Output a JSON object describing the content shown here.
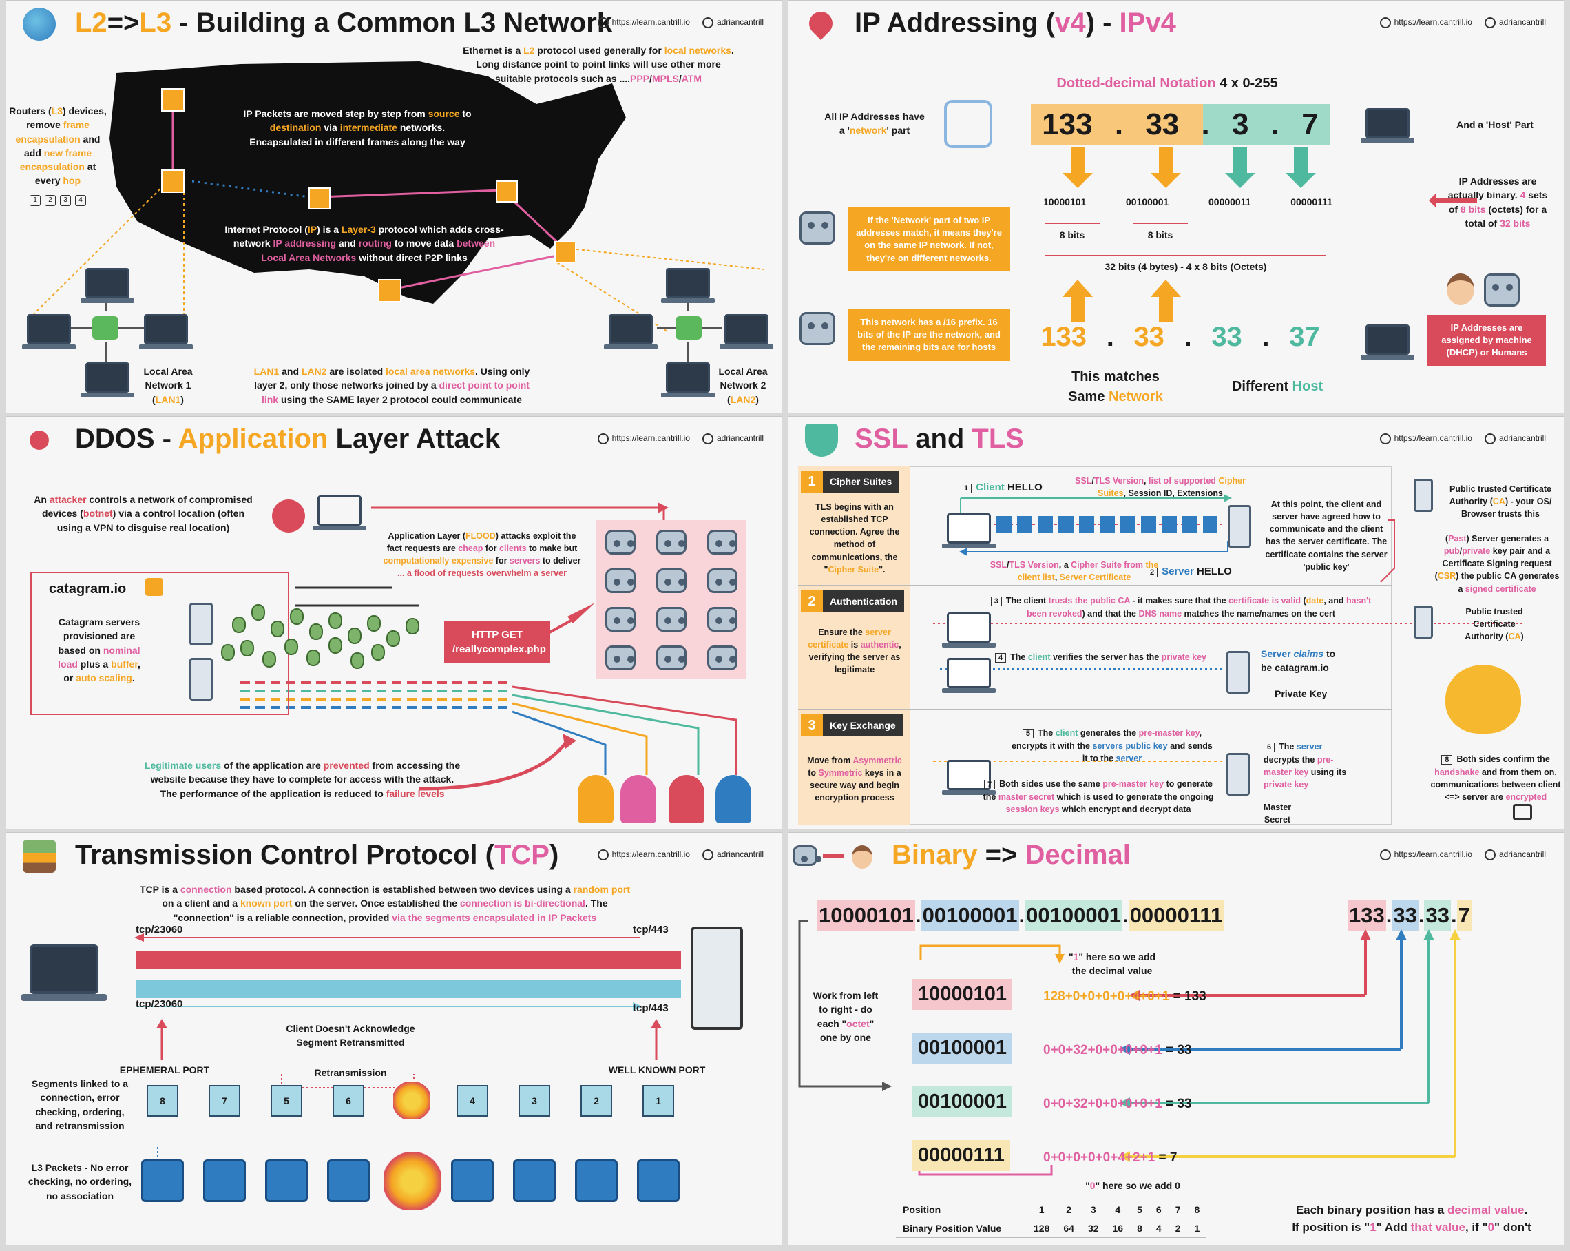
{
  "header": {
    "url": "https://learn.cantrill.io",
    "handle": "adriancantrill"
  },
  "p1": {
    "title_a": "L2",
    "title_b": "=>",
    "title_c": "L3",
    "title_d": " - Building a Common L3 Network",
    "eth_1": "Ethernet is a ",
    "eth_2": "L2",
    "eth_3": " protocol used generally for ",
    "eth_4": "local networks",
    "eth_5": ".",
    "eth_6": "Long distance point to point links will use other more",
    "eth_7": "suitable protocols such as ....",
    "eth_8": "PPP",
    "eth_9": "/",
    "eth_10": "MPLS",
    "eth_11": "/",
    "eth_12": "ATM",
    "routers_1": "Routers (",
    "routers_2": "L3",
    "routers_3": ") devices,",
    "routers_4": "remove ",
    "routers_5": "frame",
    "routers_6": "encapsulation",
    "routers_7": " and",
    "routers_8": "add ",
    "routers_9": "new frame",
    "routers_10": "encapsulation",
    "routers_11": " at",
    "routers_12": "every ",
    "routers_13": "hop",
    "hops": [
      "1",
      "2",
      "3",
      "4"
    ],
    "ip_1": "IP Packets are moved step by step from ",
    "ip_2": "source",
    "ip_3": " to",
    "ip_4": "destination",
    "ip_5": " via ",
    "ip_6": "intermediate",
    "ip_7": " networks.",
    "ip_8": "Encapsulated in different frames along the way",
    "proto_1": "Internet Protocol (",
    "proto_2": "IP",
    "proto_3": ") is a ",
    "proto_4": "Layer-3",
    "proto_5": " protocol which adds cross-",
    "proto_6": "network ",
    "proto_7": "IP addressing",
    "proto_8": " and ",
    "proto_9": "routing",
    "proto_10": " to move data ",
    "proto_11": "between",
    "proto_12": "Local Area Networks",
    "proto_13": " without direct P2P links",
    "lan1_1": "Local Area",
    "lan1_2": "Network 1",
    "lan1_3": "(",
    "lan1_4": "LAN1",
    "lan1_5": ")",
    "lan2_1": "Local Area",
    "lan2_2": "Network 2",
    "lan2_3": "(",
    "lan2_4": "LAN2",
    "lan2_5": ")",
    "iso_1": "LAN1",
    "iso_2": " and ",
    "iso_3": "LAN2",
    "iso_4": " are isolated ",
    "iso_5": "local area networks",
    "iso_6": ". Using only",
    "iso_7": "layer 2, only those networks joined by a ",
    "iso_8": "direct point to point",
    "iso_9": "link",
    "iso_10": " using the SAME layer 2 protocol could communicate"
  },
  "p2": {
    "title_a": "IP Addressing (",
    "title_b": "v4",
    "title_c": ") - ",
    "title_d": "IPv4",
    "dotted_1": "Dotted-decimal Notation ",
    "dotted_2": "4 x 0-255",
    "net_part_1": "All IP Addresses have",
    "net_part_2": "a '",
    "net_part_3": "network",
    "net_part_4": "' part",
    "host_part": "And a 'Host' Part",
    "octets": [
      "133",
      ".",
      "33",
      ".",
      "3",
      ".",
      "7"
    ],
    "binary": [
      "10000101",
      "00100001",
      "00000011",
      "00000111"
    ],
    "bits8": "8 bits",
    "bits32": "32 bits (4 bytes) - 4 x 8 bits (Octets)",
    "binary_note_1": "IP Addresses are",
    "binary_note_2": "actually binary. ",
    "binary_note_3": "4",
    "binary_note_4": " sets",
    "binary_note_5": "of ",
    "binary_note_6": "8 bits",
    "binary_note_7": " (octets) for a",
    "binary_note_8": "total of ",
    "binary_note_9": "32 bits",
    "robot_note_1": "If the 'Network' part of two IP addresses match, it means they're on the same IP network. If not, they're on different networks.",
    "robot_note_2": "This network has a /16 prefix. 16 bits of the IP are the network, and the remaining bits are for hosts",
    "octets2": [
      "133",
      ".",
      "33",
      ".",
      "33",
      ".",
      "37"
    ],
    "match_1": "This matches",
    "match_2": "Same ",
    "match_3": "Network",
    "diff_1": "Different ",
    "diff_2": "Host",
    "assigned": "IP Addresses are assigned by machine (DHCP) or Humans"
  },
  "p3": {
    "title_a": "DDOS - ",
    "title_b": "Application",
    "title_c": " Layer Attack",
    "attacker_1": "An ",
    "attacker_2": "attacker",
    "attacker_3": " controls a network of compromised",
    "attacker_4": "devices (",
    "attacker_5": "botnet",
    "attacker_6": ") via a control location (often",
    "attacker_7": "using a VPN to disguise real location)",
    "flood_1": "Application Layer (",
    "flood_2": "FLOOD",
    "flood_3": ") attacks exploit the",
    "flood_4": "fact requests are ",
    "flood_5": "cheap",
    "flood_6": " for ",
    "flood_7": "clients",
    "flood_8": " to make but",
    "flood_9": "computationally expensive",
    "flood_10": " for ",
    "flood_11": "servers",
    "flood_12": " to deliver",
    "flood_13": "... a flood of requests overwhelm a server",
    "site": "catagram.io",
    "servers_1": "Catagram servers",
    "servers_2": "provisioned are",
    "servers_3": "based on ",
    "servers_4": "nominal",
    "servers_5": "load",
    "servers_6": " plus a ",
    "servers_7": "buffer",
    "servers_8": ",",
    "servers_9": "or ",
    "servers_10": "auto scaling",
    "servers_11": ".",
    "http_1": "HTTP GET",
    "http_2": "/reallycomplex.php",
    "legit_1": "Legitimate users",
    "legit_2": " of the application are ",
    "legit_3": "prevented",
    "legit_4": " from accessing the",
    "legit_5": "website because they have to complete for access with the attack.",
    "legit_6": "The performance of the application is reduced to ",
    "legit_7": "failure levels"
  },
  "p4": {
    "title_a": "SSL",
    "title_b": " and ",
    "title_c": "TLS",
    "s1_num": "1",
    "s1_label": "Cipher Suites",
    "s1_desc_1": "TLS begins with an established TCP connection. Agree the method of communications, the \"",
    "s1_desc_2": "Cipher Suite",
    "s1_desc_3": "\".",
    "s2_num": "2",
    "s2_label": "Authentication",
    "s2_desc_1": "Ensure the ",
    "s2_desc_2": "server certificate",
    "s2_desc_3": " is ",
    "s2_desc_4": "authentic",
    "s2_desc_5": ", verifying the server as legitimate",
    "s3_num": "3",
    "s3_label": "Key Exchange",
    "s3_desc_1": "Move from ",
    "s3_desc_2": "Asymmetric",
    "s3_desc_3": " to ",
    "s3_desc_4": "Symmetric",
    "s3_desc_5": " keys in a secure way and begin encryption process",
    "n1": "1",
    "client_hello_1": "Client",
    "client_hello_2": " HELLO",
    "hello_detail_1": "SSL",
    "hello_detail_2": "/",
    "hello_detail_3": "TLS Version",
    "hello_detail_4": ", ",
    "hello_detail_5": "list of supported",
    "hello_detail_6": "Cipher Suites",
    "hello_detail_7": ", Session ID, Extensions",
    "server_detail_1": "SSL",
    "server_detail_2": "/",
    "server_detail_3": "TLS Version",
    "server_detail_4": ", a ",
    "server_detail_5": "Cipher Suite from",
    "server_detail_6": "the client list",
    "server_detail_7": ", ",
    "server_detail_8": "Server Certificate",
    "n2": "2",
    "server_hello_1": "Server",
    "server_hello_2": " HELLO",
    "agreed": "At this point, the client and server have agreed how to communicate and the client has the server certificate. The certificate contains the server 'public key'",
    "ca_1": "Public trusted Certificate Authority (",
    "ca_2": "CA",
    "ca_3": ") - your OS/ Browser trusts this",
    "csr_1": "(",
    "csr_2": "Past",
    "csr_3": ") Server generates a ",
    "csr_4": "pub",
    "csr_5": "/",
    "csr_6": "private",
    "csr_7": " key pair and a Certificate Signing request (",
    "csr_8": "CSR",
    "csr_9": ") the public CA generates a ",
    "csr_10": "signed certificate",
    "n3": "3",
    "trust_1": "The client ",
    "trust_2": "trusts the public CA",
    "trust_3": " - it makes sure that the ",
    "trust_4": "certificate is valid",
    "trust_5": " (",
    "trust_6": "date",
    "trust_7": ", and ",
    "trust_8": "hasn't been revoked",
    "trust_9": ") and that the ",
    "trust_10": "DNS name",
    "trust_11": " matches the name/names on the cert",
    "ca2_1": "Public trusted",
    "ca2_2": "Certificate",
    "ca2_3": "Authority (",
    "ca2_4": "CA",
    "ca2_5": ")",
    "n4": "4",
    "verify_1": "The ",
    "verify_2": "client",
    "verify_3": " verifies the server has the ",
    "verify_4": "private key",
    "claims_1": "Server ",
    "claims_2": "claims",
    "claims_3": " to",
    "claims_4": "be catagram.io",
    "private_key": "Private Key",
    "n5": "5",
    "premaster_1": "The ",
    "premaster_2": "client",
    "premaster_3": " generates the ",
    "premaster_4": "pre-master key",
    "premaster_5": ", encrypts it with the ",
    "premaster_6": "servers public key",
    "premaster_7": " and sends it to the ",
    "premaster_8": "server",
    "n6": "6",
    "decrypt_1": "The ",
    "decrypt_2": "server",
    "decrypt_3": " decrypts the ",
    "decrypt_4": "pre-master key",
    "decrypt_5": " using its ",
    "decrypt_6": "private key",
    "n7": "7",
    "both_1": "Both sides use the same ",
    "both_2": "pre-master key",
    "both_3": " to generate the ",
    "both_4": "master secret",
    "both_5": " which is used to generate the ongoing ",
    "both_6": "session keys",
    "both_7": " which encrypt and decrypt data",
    "master_secret": "Master Secret",
    "n8": "8",
    "confirm_1": "Both sides confirm the ",
    "confirm_2": "handshake",
    "confirm_3": " and from them on, communications between client <=> server are ",
    "confirm_4": "encrypted"
  },
  "p5": {
    "title_a": "Transmission Control Protocol (",
    "title_b": "TCP",
    "title_c": ")",
    "intro_1": "TCP is a ",
    "intro_2": "connection",
    "intro_3": " based protocol. A connection is established between two devices using a ",
    "intro_4": "random port",
    "intro_5": "on a client and a ",
    "intro_6": "known port",
    "intro_7": " on the server. Once established the ",
    "intro_8": "connection is bi-directional",
    "intro_9": ". The",
    "intro_10": "\"connection\" is a reliable connection, provided ",
    "intro_11": "via the segments encapsulated in IP Packets",
    "p1_left": "tcp/23060",
    "p1_right": "tcp/443",
    "p2_left": "tcp/23060",
    "p2_right": "tcp/443",
    "ephemeral": "EPHEMERAL PORT",
    "wellknown": "WELL KNOWN PORT",
    "ack_1": "Client Doesn't Acknowledge",
    "ack_2": "Segment Retransmitted",
    "retrans": "Retransmission",
    "segments_1": "Segments linked to a",
    "segments_2": "connection, error",
    "segments_3": "checking, ordering,",
    "segments_4": "and retransmission",
    "l3_1": "L3 Packets - No error",
    "l3_2": "checking, no ordering,",
    "l3_3": "no association",
    "cubes": [
      "8",
      "7",
      "5",
      "6",
      "",
      "4",
      "3",
      "2",
      "1"
    ]
  },
  "p6": {
    "title_a": "Binary",
    "title_b": " => ",
    "title_c": "Decimal",
    "bin_parts": [
      "10000101",
      ".",
      "00100001",
      ".",
      "00100001",
      ".",
      "00000111"
    ],
    "dec_parts": [
      "133",
      ".",
      "33",
      ".",
      "33",
      ".",
      "7"
    ],
    "here_1": "\"",
    "here_2": "1",
    "here_3": "\" here so we add",
    "here_4": "the decimal value",
    "work_1": "Work from left",
    "work_2": "to right - do",
    "work_3": "each \"",
    "work_4": "octet",
    "work_5": "\"",
    "work_6": "one by one",
    "rows": [
      {
        "bin": "10000101",
        "sum": "128+0+0+0+0+4+0+1",
        "eq": " = 133"
      },
      {
        "bin": "00100001",
        "sum": "0+0+32+0+0+0+0+1",
        "eq": " = 33"
      },
      {
        "bin": "00100001",
        "sum": "0+0+32+0+0+0+0+1",
        "eq": " = 33"
      },
      {
        "bin": "00000111",
        "sum": "0+0+0+0+0+4+2+1",
        "eq": " = 7"
      }
    ],
    "zero_1": "\"",
    "zero_2": "0",
    "zero_3": "\" here so we add 0",
    "pos_label": "Position",
    "pos_values": [
      "1",
      "2",
      "3",
      "4",
      "5",
      "6",
      "7",
      "8"
    ],
    "val_label": "Binary Position Value",
    "val_values": [
      "128",
      "64",
      "32",
      "16",
      "8",
      "4",
      "2",
      "1"
    ],
    "each_1": "Each binary position has a ",
    "each_2": "decimal value",
    "each_3": ".",
    "each_4": "If position is \"",
    "each_5": "1",
    "each_6": "\" Add ",
    "each_7": "that value",
    "each_8": ", if \"",
    "each_9": "0",
    "each_10": "\" don't"
  },
  "colors": {
    "orange": "#f5a623",
    "pink": "#e05fa0",
    "teal": "#4fb99f",
    "red": "#d94a5a",
    "blue": "#2f7cc0"
  }
}
